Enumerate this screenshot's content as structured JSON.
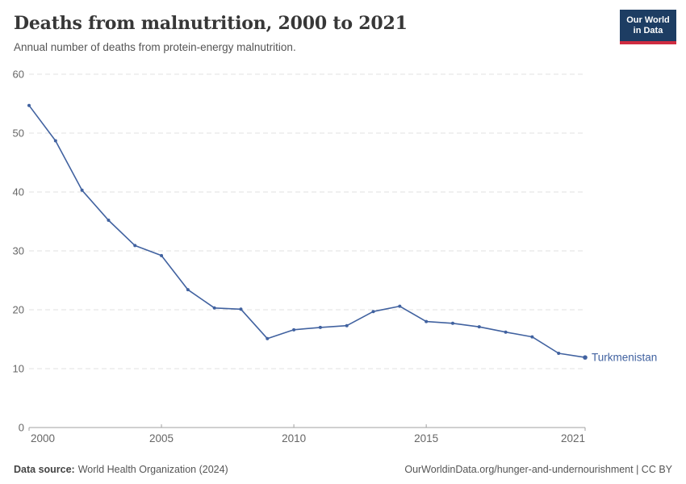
{
  "header": {
    "title": "Deaths from malnutrition, 2000 to 2021",
    "subtitle": "Annual number of deaths from protein-energy malnutrition.",
    "logo": {
      "line1": "Our World",
      "line2": "in Data"
    }
  },
  "chart_data": {
    "type": "line",
    "title": "Deaths from malnutrition, 2000 to 2021",
    "xlabel": "",
    "ylabel": "",
    "x": [
      2000,
      2001,
      2002,
      2003,
      2004,
      2005,
      2006,
      2007,
      2008,
      2009,
      2010,
      2011,
      2012,
      2013,
      2014,
      2015,
      2016,
      2017,
      2018,
      2019,
      2020,
      2021
    ],
    "series": [
      {
        "name": "Turkmenistan",
        "color": "#4162a0",
        "values": [
          54.7,
          48.7,
          40.3,
          35.2,
          30.9,
          29.2,
          23.4,
          20.3,
          20.1,
          15.1,
          16.6,
          17.0,
          17.3,
          19.7,
          20.6,
          18.0,
          17.7,
          17.1,
          16.2,
          15.4,
          12.6,
          11.9
        ]
      }
    ],
    "ylim": [
      0,
      60
    ],
    "yticks": [
      0,
      10,
      20,
      30,
      40,
      50,
      60
    ],
    "xticks": [
      2000,
      2005,
      2010,
      2015,
      2021
    ],
    "grid": "horizontal-dashed",
    "legend": "end-of-line-label"
  },
  "footer": {
    "datasource_label": "Data source:",
    "datasource_value": "World Health Organization (2024)",
    "attribution": "OurWorldinData.org/hunger-and-undernourishment | CC BY"
  },
  "colors": {
    "series_blue": "#4162a0",
    "logo_navy": "#1d3d63",
    "logo_red": "#cf2c41",
    "grid_gray": "#e0e0e0",
    "axis_gray": "#a1a1a1",
    "tick_text": "#666666",
    "title_text": "#373737",
    "subtitle_text": "#555555"
  }
}
